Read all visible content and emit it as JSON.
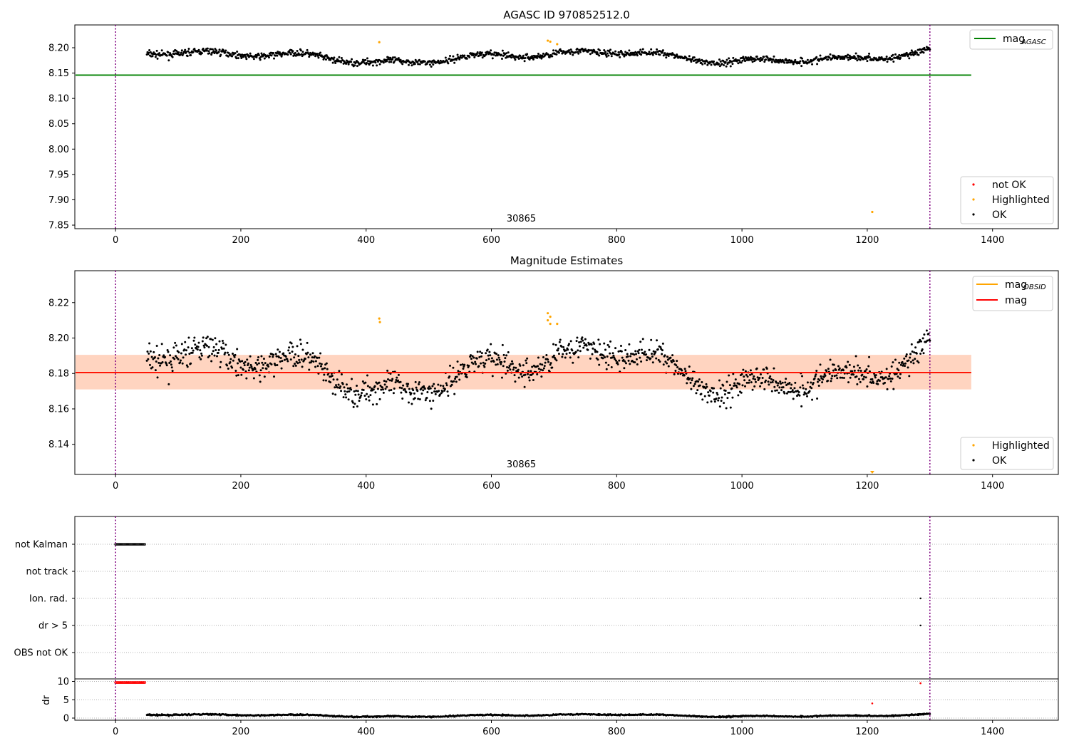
{
  "chart_data": [
    {
      "type": "scatter",
      "title": "AGASC ID 970852512.0",
      "xlim": [
        -65,
        1505
      ],
      "ylim": [
        7.843,
        8.245
      ],
      "xticks": [
        0,
        200,
        400,
        600,
        800,
        1000,
        1200,
        1400
      ],
      "yticks": [
        7.85,
        7.9,
        7.95,
        8.0,
        8.05,
        8.1,
        8.15,
        8.2
      ],
      "obsid_label": {
        "text": "30865",
        "x": 650
      },
      "boundaries_x": [
        0,
        1300
      ],
      "mag_agasc": {
        "value": 8.146,
        "x_range": [
          -65,
          1366
        ],
        "color": "#008000"
      },
      "series": [
        {
          "name": "not OK",
          "color": "#ff0000",
          "points": []
        },
        {
          "name": "Highlighted",
          "color": "#ffa500",
          "points": [
            [
              421,
              8.211
            ],
            [
              690,
              8.214
            ],
            [
              694,
              8.212
            ],
            [
              705,
              8.207
            ],
            [
              1208,
              7.876
            ]
          ]
        },
        {
          "name": "OK",
          "color": "#000000",
          "x_range": [
            50,
            1300
          ],
          "baseline": 8.182
        }
      ],
      "legends": [
        {
          "pos": "top-right",
          "items": [
            {
              "label": "mag",
              "sub": "AGASC",
              "kind": "line",
              "color": "#008000"
            }
          ]
        },
        {
          "pos": "bottom-right",
          "items": [
            {
              "label": "not OK",
              "kind": "dot",
              "color": "#ff0000"
            },
            {
              "label": "Highlighted",
              "kind": "dot",
              "color": "#ffa500"
            },
            {
              "label": "OK",
              "kind": "dot",
              "color": "#000000"
            }
          ]
        }
      ]
    },
    {
      "type": "scatter",
      "title": "Magnitude Estimates",
      "xlim": [
        -65,
        1505
      ],
      "ylim": [
        8.123,
        8.238
      ],
      "xticks": [
        0,
        200,
        400,
        600,
        800,
        1000,
        1200,
        1400
      ],
      "yticks": [
        8.14,
        8.16,
        8.18,
        8.2,
        8.22
      ],
      "obsid_label": {
        "text": "30865",
        "x": 650
      },
      "boundaries_x": [
        0,
        1300
      ],
      "mag": {
        "value": 8.1805,
        "x_range": [
          -65,
          1366
        ],
        "color": "#ff0000",
        "band": [
          8.171,
          8.1905
        ]
      },
      "mag_obsid": {
        "value": 8.1805,
        "x_range": [
          -65,
          1366
        ],
        "color": "#ffa500",
        "band": [
          8.171,
          8.1905
        ]
      },
      "series": [
        {
          "name": "Highlighted",
          "color": "#ffa500",
          "points": [
            [
              421,
              8.211
            ],
            [
              422,
              8.209
            ],
            [
              690,
              8.214
            ],
            [
              690,
              8.21
            ],
            [
              694,
              8.212
            ],
            [
              694,
              8.208
            ],
            [
              705,
              8.208
            ],
            [
              1208,
              8.123
            ]
          ]
        },
        {
          "name": "OK",
          "color": "#000000",
          "x_range": [
            50,
            1300
          ],
          "baseline": 8.182
        }
      ],
      "legends": [
        {
          "pos": "top-right",
          "items": [
            {
              "label": "mag",
              "sub": "OBSID",
              "kind": "line",
              "color": "#ffa500"
            },
            {
              "label": "mag",
              "kind": "line",
              "color": "#ff0000"
            }
          ]
        },
        {
          "pos": "bottom-right",
          "items": [
            {
              "label": "Highlighted",
              "kind": "dot",
              "color": "#ffa500"
            },
            {
              "label": "OK",
              "kind": "dot",
              "color": "#000000"
            }
          ]
        }
      ]
    },
    {
      "type": "scatter",
      "title": "",
      "xlim": [
        -65,
        1505
      ],
      "xticks": [
        0,
        200,
        400,
        600,
        800,
        1000,
        1200,
        1400
      ],
      "boundaries_x": [
        0,
        1300
      ],
      "flag_rows": [
        "not Kalman",
        "not track",
        "Ion. rad.",
        "dr > 5",
        "OBS not OK"
      ],
      "flags": [
        {
          "row": "not Kalman",
          "x_range": [
            0,
            47
          ]
        },
        {
          "row": "Ion. rad.",
          "x": [
            1285
          ]
        },
        {
          "row": "dr > 5",
          "x": [
            1285
          ]
        }
      ],
      "dr": {
        "ylabel": "dr",
        "yticks": [
          0,
          5,
          10
        ],
        "ylim": [
          -0.5,
          10.5
        ],
        "high": {
          "color": "#ff0000",
          "x_range": [
            0,
            47
          ],
          "value": 9.7,
          "extra": [
            [
              1208,
              4.0
            ],
            [
              1285,
              9.5
            ]
          ]
        },
        "low": {
          "color": "#000000",
          "x_range": [
            50,
            1300
          ],
          "value": 0.7
        }
      }
    }
  ]
}
